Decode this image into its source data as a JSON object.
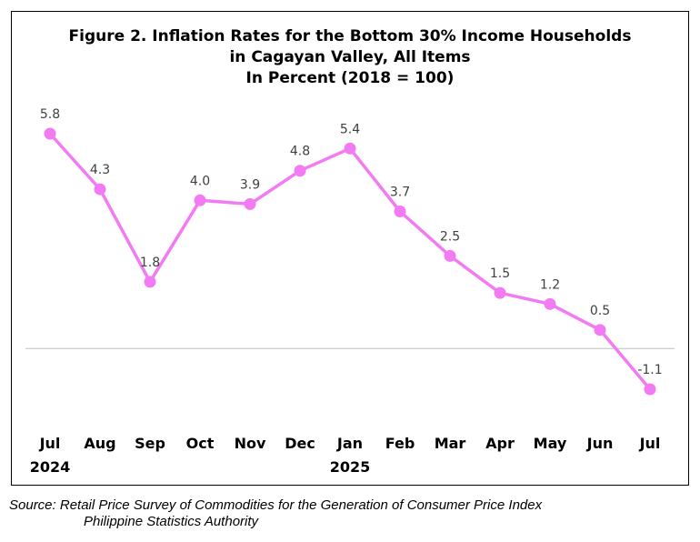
{
  "chart_data": {
    "type": "line",
    "title_lines": [
      "Figure 2. Inflation Rates for the Bottom 30% Income Households",
      "in Cagayan Valley, All Items",
      "In Percent (2018 = 100)"
    ],
    "categories": [
      "Jul",
      "Aug",
      "Sep",
      "Oct",
      "Nov",
      "Dec",
      "Jan",
      "Feb",
      "Mar",
      "Apr",
      "May",
      "Jun",
      "Jul"
    ],
    "year_labels": [
      "2024",
      "",
      "",
      "",
      "",
      "",
      "2025",
      "",
      "",
      "",
      "",
      "",
      ""
    ],
    "series": [
      {
        "values": [
          5.8,
          4.3,
          1.8,
          4.0,
          3.9,
          4.8,
          5.4,
          3.7,
          2.5,
          1.5,
          1.2,
          0.5,
          -1.1
        ],
        "color": "#f27af2"
      }
    ],
    "data_labels": [
      "5.8",
      "4.3",
      "1.8",
      "4.0",
      "3.9",
      "4.8",
      "5.4",
      "3.7",
      "2.5",
      "1.5",
      "1.2",
      "0.5",
      "-1.1"
    ],
    "ylim": [
      -1.1,
      5.8
    ],
    "zero_line": true,
    "grid": false,
    "colors": {
      "line": "#f27af2",
      "zero_line": "#bfbfbf",
      "text": "#000000",
      "label": "#404040"
    }
  },
  "source": {
    "line1": "Source: Retail Price Survey of Commodities for the Generation of Consumer Price Index",
    "line2": "Philippine Statistics Authority"
  }
}
